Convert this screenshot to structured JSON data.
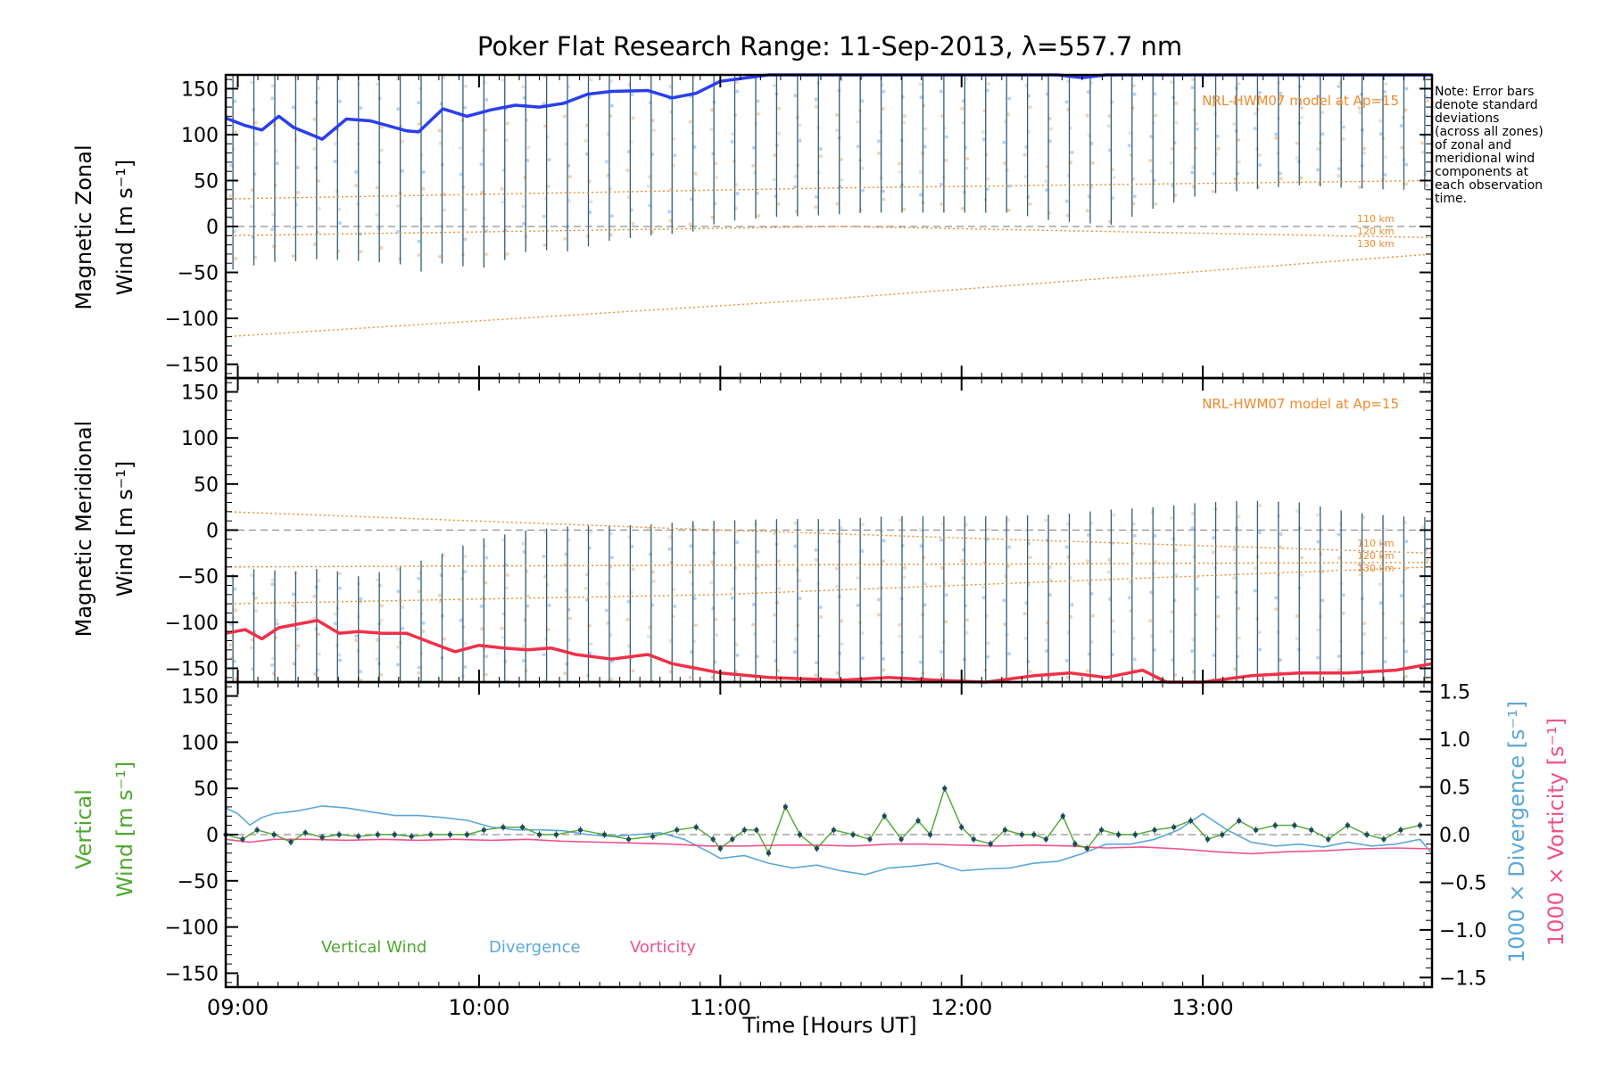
{
  "chart_data": {
    "type": "line",
    "title": "Poker Flat Research Range: 11-Sep-2013, λ=557.7 nm",
    "xlabel": "Time [Hours UT]",
    "x_range": [
      8.95,
      13.95
    ],
    "x_ticks": [
      9,
      10,
      11,
      12,
      13
    ],
    "x_tick_labels": [
      "09:00",
      "10:00",
      "11:00",
      "12:00",
      "13:00"
    ],
    "note": [
      "Note: Error bars",
      "denote standard",
      "deviations",
      "(across all zones)",
      "of zonal and",
      "meridional wind",
      "components at",
      "each observation",
      "time."
    ],
    "colors": {
      "zonal": "#2a3ef0",
      "meridional": "#f03048",
      "vertical": "#4ea82e",
      "divergence": "#5aa8d8",
      "vorticity": "#f0508c",
      "model": "#f08a2a",
      "errorbar": "#2e5e7a",
      "axis": "#000000",
      "zero_line": "#909090"
    },
    "panels": [
      {
        "id": "zonal",
        "ylabel_line1": "Magnetic Zonal",
        "ylabel_line2": "Wind [m s⁻¹]",
        "ylim": [
          -165,
          165
        ],
        "yticks": [
          -150,
          -100,
          -50,
          0,
          50,
          100,
          150
        ],
        "ytick_labels": [
          "−150",
          "−100",
          "−50",
          "0",
          "50",
          "100",
          "150"
        ],
        "model_label": "NRL-HWM07 model at Ap=15",
        "model_alt_labels": [
          "110 km",
          "120 km",
          "130 km"
        ],
        "model_lines": [
          {
            "name": "110 km",
            "x": [
              8.95,
              11.5,
              13.95
            ],
            "y": [
              -10,
              0,
              -12
            ]
          },
          {
            "name": "120 km",
            "x": [
              8.95,
              11.5,
              13.95
            ],
            "y": [
              30,
              42,
              50
            ]
          },
          {
            "name": "130 km",
            "x": [
              8.95,
              11.5,
              13.95
            ],
            "y": [
              -120,
              -78,
              -30
            ]
          }
        ],
        "series": {
          "name": "Magnetic Zonal Wind",
          "x": [
            8.95,
            9.03,
            9.1,
            9.17,
            9.23,
            9.35,
            9.45,
            9.55,
            9.7,
            9.75,
            9.85,
            9.95,
            10.05,
            10.15,
            10.25,
            10.35,
            10.45,
            10.55,
            10.7,
            10.8,
            10.9,
            11.0,
            11.2,
            11.4,
            11.6,
            11.8,
            12.0,
            12.2,
            12.4,
            12.5,
            12.6,
            12.8,
            13.0,
            13.2,
            13.4,
            13.6,
            13.8,
            13.95
          ],
          "values": [
            118,
            110,
            105,
            120,
            108,
            95,
            117,
            115,
            104,
            103,
            128,
            120,
            127,
            132,
            130,
            134,
            144,
            147,
            148,
            140,
            145,
            158,
            166,
            168,
            168,
            166,
            168,
            168,
            166,
            162,
            166,
            168,
            168,
            168,
            168,
            168,
            168,
            168
          ]
        },
        "error_lo": [
          -48,
          -45,
          -40,
          -38,
          -38,
          -35,
          -37,
          -38,
          -42,
          -50,
          -40,
          -44,
          -45,
          -30,
          -25,
          -28,
          -22,
          -15,
          -10,
          -8,
          -5,
          5,
          10,
          12,
          15,
          15,
          15,
          15,
          5,
          5,
          0,
          20,
          35,
          40,
          45,
          42,
          40,
          40
        ],
        "error_hi": [
          168,
          168,
          168,
          168,
          168,
          168,
          168,
          168,
          168,
          168,
          168,
          168,
          168,
          168,
          168,
          168,
          168,
          168,
          168,
          168,
          168,
          168,
          168,
          168,
          168,
          168,
          168,
          168,
          168,
          168,
          168,
          168,
          168,
          168,
          168,
          168,
          168,
          168
        ]
      },
      {
        "id": "meridional",
        "ylabel_line1": "Magnetic Meridional",
        "ylabel_line2": "Wind [m s⁻¹]",
        "ylim": [
          -165,
          165
        ],
        "yticks": [
          -150,
          -100,
          -50,
          0,
          50,
          100,
          150
        ],
        "ytick_labels": [
          "−150",
          "−100",
          "−50",
          "0",
          "50",
          "100",
          "150"
        ],
        "model_label": "NRL-HWM07 model at Ap=15",
        "model_alt_labels": [
          "110 km",
          "120 km",
          "130 km"
        ],
        "model_lines": [
          {
            "name": "110 km",
            "x": [
              8.95,
              11.0,
              13.95
            ],
            "y": [
              20,
              0,
              -25
            ]
          },
          {
            "name": "120 km",
            "x": [
              8.95,
              11.0,
              13.95
            ],
            "y": [
              -40,
              -38,
              -35
            ]
          },
          {
            "name": "130 km",
            "x": [
              8.95,
              11.0,
              13.95
            ],
            "y": [
              -80,
              -70,
              -40
            ]
          }
        ],
        "series": {
          "name": "Magnetic Meridional Wind",
          "x": [
            8.95,
            9.03,
            9.1,
            9.17,
            9.25,
            9.33,
            9.42,
            9.5,
            9.6,
            9.7,
            9.8,
            9.9,
            10.0,
            10.1,
            10.2,
            10.3,
            10.4,
            10.55,
            10.7,
            10.8,
            10.9,
            11.0,
            11.2,
            11.5,
            11.7,
            11.9,
            12.1,
            12.3,
            12.45,
            12.6,
            12.75,
            12.85,
            13.0,
            13.2,
            13.4,
            13.6,
            13.8,
            13.95
          ],
          "values": [
            -112,
            -108,
            -118,
            -106,
            -102,
            -98,
            -112,
            -110,
            -112,
            -112,
            -122,
            -132,
            -125,
            -128,
            -130,
            -128,
            -135,
            -140,
            -135,
            -145,
            -150,
            -155,
            -160,
            -163,
            -160,
            -163,
            -165,
            -158,
            -155,
            -160,
            -152,
            -165,
            -165,
            -158,
            -155,
            -155,
            -152,
            -145
          ]
        },
        "error_lo": [
          -168,
          -168,
          -168,
          -168,
          -168,
          -168,
          -168,
          -168,
          -168,
          -168,
          -168,
          -168,
          -168,
          -168,
          -168,
          -168,
          -168,
          -168,
          -168,
          -168,
          -168,
          -168,
          -168,
          -168,
          -168,
          -168,
          -168,
          -168,
          -168,
          -168,
          -168,
          -168,
          -168,
          -168,
          -168,
          -168,
          -168,
          -168
        ],
        "error_hi": [
          -50,
          -45,
          -40,
          -45,
          -45,
          -42,
          -45,
          -50,
          -45,
          -38,
          -30,
          -20,
          -10,
          -5,
          0,
          2,
          5,
          5,
          6,
          8,
          10,
          10,
          12,
          12,
          15,
          15,
          15,
          16,
          18,
          22,
          24,
          26,
          30,
          32,
          30,
          20,
          15,
          14
        ]
      },
      {
        "id": "vertical",
        "ylabel_line1": "Vertical",
        "ylabel_line2": "Wind [m s⁻¹]",
        "ylim": [
          -165,
          165
        ],
        "yticks": [
          -150,
          -100,
          -50,
          0,
          50,
          100,
          150
        ],
        "ytick_labels": [
          "−150",
          "−100",
          "−50",
          "0",
          "50",
          "100",
          "150"
        ],
        "right_ylim": [
          -1.6,
          1.6
        ],
        "right_yticks": [
          -1.5,
          -1.0,
          -0.5,
          0.0,
          0.5,
          1.0,
          1.5
        ],
        "right_ytick_labels": [
          "−1.5",
          "−1.0",
          "−0.5",
          "0.0",
          "0.5",
          "1.0",
          "1.5"
        ],
        "right_label_divergence": "1000 × Divergence [s⁻¹]",
        "right_label_vorticity": "1000 × Vorticity [s⁻¹]",
        "legend": [
          "Vertical Wind",
          "Divergence",
          "Vorticity"
        ],
        "vertical_wind": {
          "x": [
            8.95,
            9.02,
            9.08,
            9.15,
            9.22,
            9.28,
            9.35,
            9.42,
            9.5,
            9.58,
            9.65,
            9.72,
            9.8,
            9.88,
            9.95,
            10.02,
            10.1,
            10.18,
            10.25,
            10.32,
            10.42,
            10.52,
            10.62,
            10.72,
            10.82,
            10.9,
            10.97,
            11.0,
            11.05,
            11.1,
            11.15,
            11.2,
            11.27,
            11.33,
            11.4,
            11.47,
            11.55,
            11.62,
            11.68,
            11.75,
            11.82,
            11.87,
            11.93,
            12.0,
            12.05,
            12.12,
            12.18,
            12.25,
            12.3,
            12.35,
            12.42,
            12.47,
            12.52,
            12.58,
            12.65,
            12.72,
            12.8,
            12.88,
            12.95,
            13.02,
            13.08,
            13.15,
            13.22,
            13.3,
            13.38,
            13.45,
            13.52,
            13.6,
            13.68,
            13.75,
            13.82,
            13.9
          ],
          "values": [
            0,
            -5,
            5,
            0,
            -8,
            2,
            -3,
            0,
            -2,
            0,
            0,
            -2,
            0,
            0,
            0,
            5,
            8,
            8,
            0,
            0,
            5,
            0,
            -5,
            -2,
            5,
            8,
            -5,
            -15,
            -5,
            5,
            5,
            -20,
            30,
            0,
            -15,
            5,
            0,
            -5,
            20,
            -5,
            15,
            0,
            50,
            8,
            -5,
            -10,
            5,
            0,
            0,
            -5,
            20,
            -10,
            -15,
            5,
            0,
            0,
            5,
            8,
            15,
            -5,
            0,
            15,
            5,
            10,
            10,
            5,
            -5,
            10,
            0,
            -5,
            5,
            10
          ]
        },
        "divergence": {
          "x": [
            8.95,
            9.0,
            9.05,
            9.1,
            9.15,
            9.25,
            9.35,
            9.45,
            9.55,
            9.65,
            9.75,
            9.85,
            9.95,
            10.05,
            10.15,
            10.25,
            10.35,
            10.45,
            10.55,
            10.65,
            10.75,
            10.85,
            10.95,
            11.0,
            11.1,
            11.2,
            11.3,
            11.4,
            11.5,
            11.6,
            11.7,
            11.8,
            11.9,
            12.0,
            12.1,
            12.2,
            12.3,
            12.4,
            12.5,
            12.6,
            12.7,
            12.8,
            12.9,
            13.0,
            13.1,
            13.2,
            13.3,
            13.4,
            13.5,
            13.6,
            13.7,
            13.8,
            13.9,
            13.95
          ],
          "values": [
            0.28,
            0.22,
            0.1,
            0.18,
            0.22,
            0.25,
            0.3,
            0.28,
            0.24,
            0.2,
            0.2,
            0.18,
            0.15,
            0.08,
            0.05,
            0.05,
            0.04,
            0.0,
            -0.02,
            0.0,
            0.02,
            -0.05,
            -0.18,
            -0.25,
            -0.22,
            -0.3,
            -0.35,
            -0.32,
            -0.38,
            -0.42,
            -0.35,
            -0.33,
            -0.3,
            -0.38,
            -0.36,
            -0.35,
            -0.3,
            -0.28,
            -0.2,
            -0.1,
            -0.1,
            -0.05,
            0.05,
            0.22,
            0.05,
            -0.08,
            -0.12,
            -0.1,
            -0.13,
            -0.08,
            -0.12,
            -0.1,
            -0.05,
            -0.2
          ]
        },
        "vorticity": {
          "x": [
            8.95,
            9.05,
            9.15,
            9.3,
            9.45,
            9.6,
            9.75,
            9.9,
            10.05,
            10.2,
            10.35,
            10.5,
            10.65,
            10.8,
            10.95,
            11.1,
            11.25,
            11.4,
            11.55,
            11.7,
            11.85,
            12.0,
            12.15,
            12.3,
            12.45,
            12.6,
            12.75,
            12.9,
            13.05,
            13.2,
            13.35,
            13.5,
            13.65,
            13.8,
            13.95
          ],
          "values": [
            -0.05,
            -0.08,
            -0.05,
            -0.05,
            -0.06,
            -0.05,
            -0.06,
            -0.05,
            -0.06,
            -0.05,
            -0.07,
            -0.08,
            -0.09,
            -0.1,
            -0.12,
            -0.12,
            -0.11,
            -0.11,
            -0.12,
            -0.1,
            -0.1,
            -0.11,
            -0.12,
            -0.11,
            -0.12,
            -0.14,
            -0.13,
            -0.15,
            -0.18,
            -0.2,
            -0.18,
            -0.17,
            -0.15,
            -0.14,
            -0.15
          ]
        }
      }
    ]
  }
}
